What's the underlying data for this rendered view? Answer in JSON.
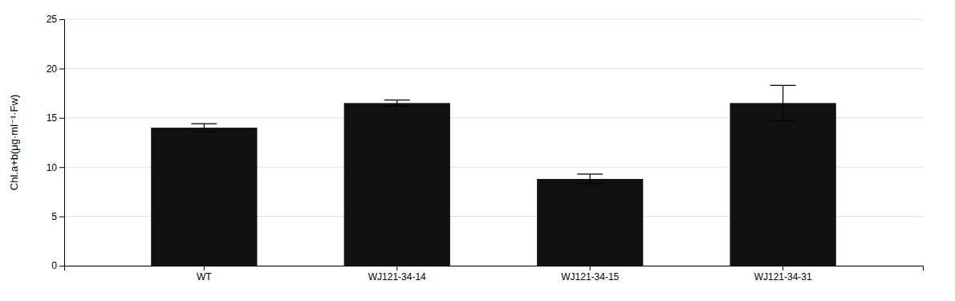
{
  "chart_data": {
    "type": "bar",
    "categories": [
      "WT",
      "WJ121-34-14",
      "WJ121-34-15",
      "WJ121-34-31"
    ],
    "values": [
      14.0,
      16.5,
      8.8,
      16.5
    ],
    "errors": [
      0.4,
      0.3,
      0.5,
      1.8
    ],
    "color": "#111111",
    "ylabel": "Chl.a+b(μg·ml⁻¹·Fw)",
    "ylim": [
      0,
      25
    ],
    "yticks": [
      0,
      5,
      10,
      15,
      20,
      25
    ],
    "grid": true
  }
}
